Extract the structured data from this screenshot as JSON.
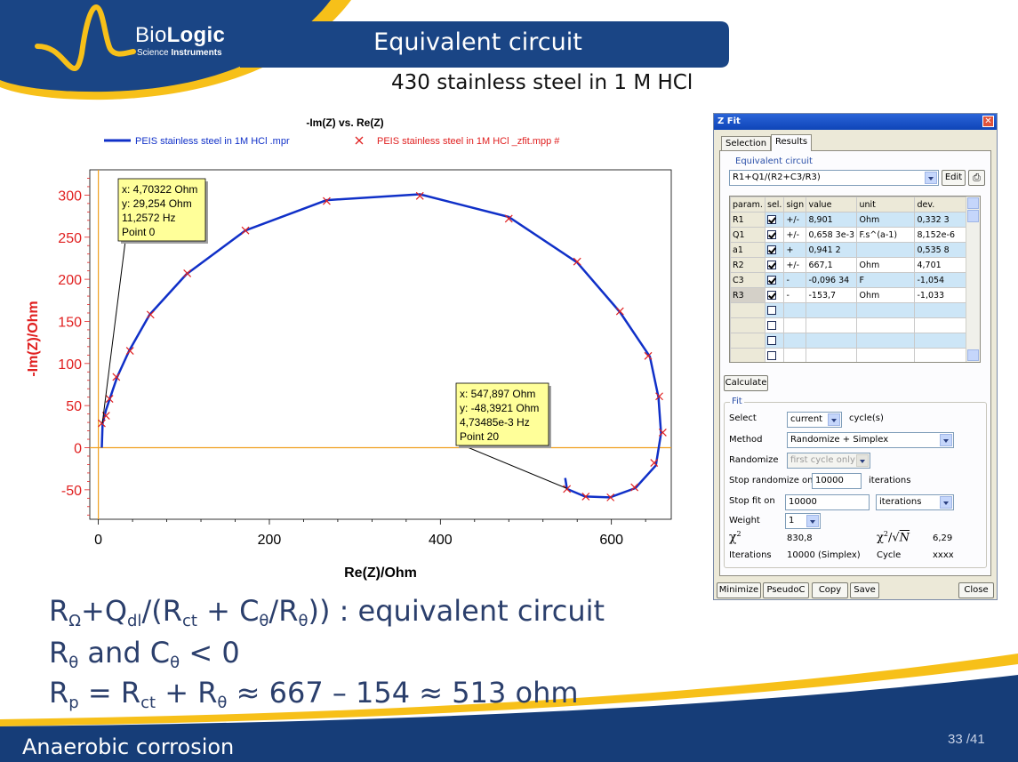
{
  "logo": {
    "brand_a": "Bio",
    "brand_b": "Logic",
    "sub_a": "Science",
    "sub_b": "Instruments"
  },
  "slide": {
    "title": "Equivalent circuit",
    "subtitle": "430 stainless steel in 1 M HCl"
  },
  "chart_data": {
    "type": "line",
    "title": "-Im(Z) vs. Re(Z)",
    "xlabel": "Re(Z)/Ohm",
    "ylabel": "-Im(Z)/Ohm",
    "xlim": [
      -10,
      670
    ],
    "ylim": [
      -85,
      330
    ],
    "xticks": [
      0,
      200,
      400,
      600
    ],
    "yticks": [
      -50,
      0,
      50,
      100,
      150,
      200,
      250,
      300
    ],
    "xtick_labels": [
      "0",
      "200",
      "400",
      "600"
    ],
    "ytick_labels": [
      "-50",
      "0",
      "50",
      "100",
      "150",
      "200",
      "250",
      "300"
    ],
    "legend": [
      "PEIS stainless steel in 1M HCl .mpr",
      "PEIS stainless steel in 1M HCl _zfit.mpp #"
    ],
    "series": [
      {
        "name": "PEIS stainless steel in 1M HCl .mpr",
        "color": "#1030c8",
        "x": [
          4,
          5,
          9,
          14,
          22,
          36,
          60,
          103,
          172,
          267,
          376,
          480,
          560,
          610,
          645,
          655,
          658,
          652,
          628,
          598,
          569,
          548,
          546
        ],
        "y": [
          0,
          29,
          45,
          60,
          84,
          115,
          158,
          206,
          258,
          294,
          301,
          274,
          220,
          161,
          108,
          60,
          17,
          -21,
          -48,
          -59,
          -58,
          -49,
          -36
        ]
      },
      {
        "name": "PEIS stainless steel in 1M HCl _zfit.mpp #",
        "color": "#e02020",
        "x": [
          4,
          9,
          13,
          21,
          37,
          61,
          104,
          172,
          267,
          376,
          480,
          560,
          610,
          643,
          656,
          660,
          650,
          627,
          599,
          570,
          548
        ],
        "y": [
          29,
          38,
          58,
          84,
          115,
          158,
          207,
          258,
          293,
          299,
          272,
          221,
          162,
          109,
          61,
          18,
          -18,
          -47,
          -59,
          -58,
          -49
        ]
      }
    ],
    "annotations": [
      {
        "lines": [
          "x: 4,70322 Ohm",
          "y: 29,254 Ohm",
          "11,2572 Hz",
          "Point 0"
        ],
        "target": [
          4.7,
          29.25
        ]
      },
      {
        "lines": [
          "x: 547,897 Ohm",
          "y: -48,3921 Ohm",
          "4,73485e-3 Hz",
          "Point 20"
        ],
        "target": [
          547.9,
          -48.39
        ]
      }
    ],
    "grid": false,
    "legend_placement": "top"
  },
  "zfit": {
    "title": "Z Fit",
    "tabs": [
      "Selection",
      "Results"
    ],
    "active_tab": "Results",
    "circuit_group": "Equivalent circuit",
    "circuit": "R1+Q1/(R2+C3/R3)",
    "edit_label": "Edit",
    "columns": [
      "param.",
      "sel.",
      "sign",
      "value",
      "unit",
      "dev."
    ],
    "rows": [
      {
        "param": "R1",
        "sign": "+/-",
        "value": "8,901",
        "unit": "Ohm",
        "dev": "0,332 3"
      },
      {
        "param": "Q1",
        "sign": "+/-",
        "value": "0,658 3e-3",
        "unit": "F.s^(a-1)",
        "dev": "8,152e-6"
      },
      {
        "param": "a1",
        "sign": "+",
        "value": "0,941 2",
        "unit": "",
        "dev": "0,535 8"
      },
      {
        "param": "R2",
        "sign": "+/-",
        "value": "667,1",
        "unit": "Ohm",
        "dev": "4,701"
      },
      {
        "param": "C3",
        "sign": "-",
        "value": "-0,096 34",
        "unit": "F",
        "dev": "-1,054"
      },
      {
        "param": "R3",
        "sign": "-",
        "value": "-153,7",
        "unit": "Ohm",
        "dev": "-1,033"
      }
    ],
    "calculate_label": "Calculate",
    "fit_group": "Fit",
    "select_label": "Select",
    "select_value": "current",
    "select_unit": "cycle(s)",
    "method_label": "Method",
    "method_value": "Randomize + Simplex",
    "randomize_label": "Randomize",
    "randomize_value": "first cycle only",
    "stop_randomize_label": "Stop randomize on",
    "stop_randomize_value": "10000",
    "stop_randomize_unit": "iterations",
    "stop_fit_label": "Stop fit on",
    "stop_fit_value": "10000",
    "stop_fit_unit": "iterations",
    "weight_label": "Weight",
    "weight_value": "1",
    "chi2_value": "830,8",
    "chi2n_value": "6,29",
    "iterations_label": "Iterations",
    "iterations_value": "10000 (Simplex)",
    "cycle_label": "Cycle",
    "cycle_value": "xxxx",
    "footer_buttons": [
      "Minimize",
      "PseudoC",
      "Copy",
      "Save",
      "Close"
    ]
  },
  "equations": {
    "l1": {
      "a": "R",
      "a_sub": "Ω",
      "b": "+Q",
      "b_sub": "dl",
      "c": "/(R",
      "c_sub": "ct",
      "d": " + C",
      "d_sub": "θ",
      "e": "/R",
      "e_sub": "θ",
      "f": ")) : equivalent circuit"
    },
    "l2": {
      "a": "R",
      "a_sub": "θ",
      "b": " and C",
      "b_sub": "θ",
      "c": " < 0"
    },
    "l3": {
      "a": "R",
      "a_sub": "p",
      "b": " = R",
      "b_sub": "ct",
      "c": " + R",
      "c_sub": "θ",
      "d": " ≈ 667 – 154 ≈ 513 ohm"
    }
  },
  "footer": {
    "text": "Anaerobic corrosion",
    "page": "33 /41"
  },
  "colors": {
    "navy": "#163d78",
    "gold": "#f7c019",
    "axis_red": "#e02020",
    "line_blue": "#1030c8"
  }
}
